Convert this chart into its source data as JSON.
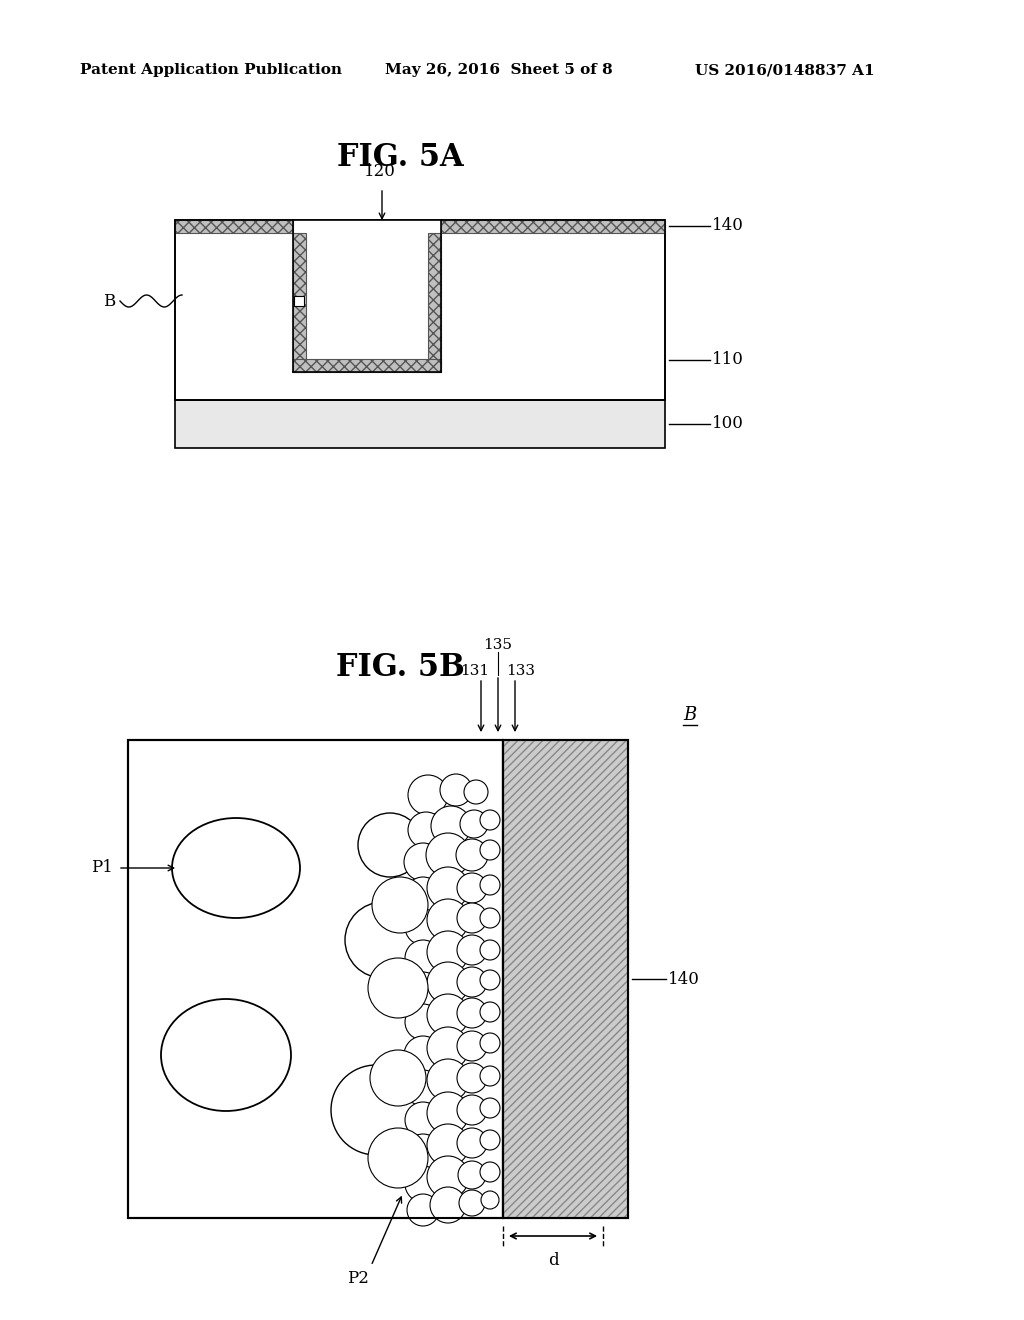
{
  "bg_color": "#ffffff",
  "header_left": "Patent Application Publication",
  "header_mid": "May 26, 2016  Sheet 5 of 8",
  "header_right": "US 2016/0148837 A1",
  "fig5a_title": "FIG. 5A",
  "fig5b_title": "FIG. 5B",
  "label_120": "120",
  "label_140": "140",
  "label_110": "110",
  "label_100": "100",
  "label_B": "B",
  "label_135": "135",
  "label_131": "131",
  "label_133": "133",
  "label_140b": "140",
  "label_P1": "P1",
  "label_P2": "P2",
  "label_d": "d",
  "label_B2": "B"
}
